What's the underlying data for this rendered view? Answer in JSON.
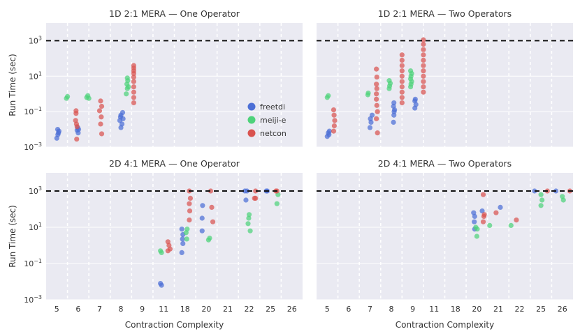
{
  "chart_data": [
    {
      "type": "scatter",
      "title": "1D 2:1 MERA — One Operator",
      "xlabel": "",
      "ylabel": "Run Time (sec)",
      "yscale": "log",
      "ylim_log10": [
        -3,
        4
      ],
      "yticks": [
        {
          "exp": -3,
          "label": "10",
          "sup": "−3"
        },
        {
          "exp": -1,
          "label": "10",
          "sup": "−1"
        },
        {
          "exp": 1,
          "label": "10",
          "sup": "1"
        },
        {
          "exp": 3,
          "label": "10",
          "sup": "3"
        }
      ],
      "xticks": [
        "5",
        "6",
        "7",
        "8",
        "9",
        "11",
        "18",
        "20",
        "21",
        "22",
        "25",
        "26"
      ],
      "timeout_log10": 3,
      "series": [
        {
          "name": "freetdi",
          "points": [
            [
              0.0,
              -2.5
            ],
            [
              0.05,
              -2.3
            ],
            [
              0.08,
              -2.2
            ],
            [
              0.1,
              -2.1
            ],
            [
              0.04,
              -2.0
            ],
            [
              1.0,
              -2.2
            ],
            [
              0.95,
              -2.05
            ],
            [
              1.02,
              -2.0
            ],
            [
              0.98,
              -1.9
            ],
            [
              3.0,
              -1.9
            ],
            [
              3.05,
              -1.7
            ],
            [
              2.95,
              -1.5
            ],
            [
              3.1,
              -1.4
            ],
            [
              3.0,
              -1.2
            ],
            [
              3.08,
              -1.05
            ],
            [
              2.98,
              -1.3
            ]
          ]
        },
        {
          "name": "meiji-e",
          "points": [
            [
              0.45,
              -0.25
            ],
            [
              0.5,
              -0.15
            ],
            [
              1.4,
              -0.2
            ],
            [
              1.45,
              -0.1
            ],
            [
              1.5,
              -0.25
            ],
            [
              3.25,
              0.0
            ],
            [
              3.3,
              0.3
            ],
            [
              3.28,
              0.55
            ],
            [
              3.32,
              0.75
            ],
            [
              3.3,
              0.9
            ],
            [
              3.35,
              0.4
            ]
          ]
        },
        {
          "name": "netcon",
          "points": [
            [
              0.9,
              -0.95
            ],
            [
              0.88,
              -1.5
            ],
            [
              0.92,
              -1.7
            ],
            [
              0.95,
              -1.85
            ],
            [
              0.93,
              -2.55
            ],
            [
              0.9,
              -1.1
            ],
            [
              2.05,
              -0.4
            ],
            [
              2.1,
              -0.7
            ],
            [
              2.0,
              -0.95
            ],
            [
              2.08,
              -1.3
            ],
            [
              2.05,
              -1.7
            ],
            [
              2.1,
              -2.25
            ],
            [
              3.6,
              -0.5
            ],
            [
              3.6,
              -0.2
            ],
            [
              3.6,
              0.1
            ],
            [
              3.6,
              0.4
            ],
            [
              3.6,
              0.7
            ],
            [
              3.6,
              0.95
            ],
            [
              3.6,
              1.15
            ],
            [
              3.6,
              1.3
            ],
            [
              3.6,
              1.45
            ],
            [
              3.6,
              1.6
            ]
          ]
        }
      ]
    },
    {
      "type": "scatter",
      "title": "1D 2:1 MERA — Two Operators",
      "xlabel": "",
      "ylabel": "",
      "yscale": "log",
      "ylim_log10": [
        -3,
        4
      ],
      "xticks": [
        "5",
        "6",
        "7",
        "8",
        "9",
        "11",
        "18",
        "20",
        "21",
        "22",
        "25",
        "26"
      ],
      "timeout_log10": 3,
      "series": [
        {
          "name": "freetdi",
          "points": [
            [
              0.0,
              -2.4
            ],
            [
              0.05,
              -2.2
            ],
            [
              0.1,
              -2.1
            ],
            [
              0.08,
              -2.3
            ],
            [
              2.0,
              -1.9
            ],
            [
              2.05,
              -1.6
            ],
            [
              2.1,
              -1.2
            ],
            [
              2.02,
              -1.4
            ],
            [
              3.1,
              -1.6
            ],
            [
              3.12,
              -1.2
            ],
            [
              3.15,
              -0.9
            ],
            [
              3.1,
              -0.7
            ],
            [
              3.12,
              -0.5
            ],
            [
              3.13,
              -1.0
            ],
            [
              4.1,
              -0.8
            ],
            [
              4.15,
              -0.6
            ],
            [
              4.1,
              -0.4
            ],
            [
              4.12,
              -0.3
            ]
          ]
        },
        {
          "name": "meiji-e",
          "points": [
            [
              0.0,
              -0.2
            ],
            [
              0.05,
              -0.1
            ],
            [
              1.9,
              -0.05
            ],
            [
              1.92,
              0.05
            ],
            [
              2.9,
              0.3
            ],
            [
              2.92,
              0.45
            ],
            [
              2.95,
              0.6
            ],
            [
              2.9,
              0.75
            ],
            [
              3.9,
              0.4
            ],
            [
              3.92,
              0.55
            ],
            [
              3.95,
              0.7
            ],
            [
              3.9,
              0.85
            ],
            [
              3.92,
              1.0
            ],
            [
              3.95,
              1.15
            ],
            [
              3.9,
              1.3
            ]
          ]
        },
        {
          "name": "netcon",
          "points": [
            [
              0.3,
              -0.9
            ],
            [
              0.32,
              -1.2
            ],
            [
              0.35,
              -1.5
            ],
            [
              0.33,
              -1.8
            ],
            [
              0.3,
              -2.1
            ],
            [
              2.3,
              -0.3
            ],
            [
              2.32,
              -0.65
            ],
            [
              2.35,
              -1.0
            ],
            [
              2.3,
              -1.4
            ],
            [
              2.35,
              -2.2
            ],
            [
              2.3,
              0.0
            ],
            [
              2.32,
              0.3
            ],
            [
              2.3,
              0.55
            ],
            [
              2.32,
              0.95
            ],
            [
              2.3,
              1.4
            ],
            [
              3.5,
              -0.5
            ],
            [
              3.5,
              -0.2
            ],
            [
              3.5,
              0.1
            ],
            [
              3.5,
              0.4
            ],
            [
              3.5,
              0.7
            ],
            [
              3.5,
              1.0
            ],
            [
              3.5,
              1.3
            ],
            [
              3.5,
              1.6
            ],
            [
              3.5,
              1.9
            ],
            [
              3.5,
              2.2
            ],
            [
              4.5,
              0.1
            ],
            [
              4.5,
              0.4
            ],
            [
              4.5,
              0.7
            ],
            [
              4.5,
              1.0
            ],
            [
              4.5,
              1.3
            ],
            [
              4.5,
              1.6
            ],
            [
              4.5,
              1.9
            ],
            [
              4.5,
              2.2
            ],
            [
              4.5,
              2.5
            ],
            [
              4.5,
              2.8
            ],
            [
              4.5,
              3.05
            ]
          ]
        }
      ]
    },
    {
      "type": "scatter",
      "title": "2D 4:1 MERA — One Operator",
      "xlabel": "Contraction Complexity",
      "ylabel": "Run Time (sec)",
      "yscale": "log",
      "ylim_log10": [
        -3,
        4
      ],
      "yticks": [
        {
          "exp": -3,
          "label": "10",
          "sup": "−3"
        },
        {
          "exp": -1,
          "label": "10",
          "sup": "−1"
        },
        {
          "exp": 1,
          "label": "10",
          "sup": "1"
        },
        {
          "exp": 3,
          "label": "10",
          "sup": "3"
        }
      ],
      "xticks": [
        "5",
        "6",
        "7",
        "8",
        "9",
        "11",
        "18",
        "20",
        "21",
        "22",
        "25",
        "26"
      ],
      "timeout_log10": 3,
      "series": [
        {
          "name": "freetdi",
          "points": [
            [
              4.85,
              -2.1
            ],
            [
              4.9,
              -2.2
            ],
            [
              5.85,
              0.9
            ],
            [
              5.9,
              0.6
            ],
            [
              5.88,
              0.35
            ],
            [
              5.9,
              0.1
            ],
            [
              5.85,
              -0.4
            ],
            [
              6.8,
              1.5
            ],
            [
              6.82,
              2.2
            ],
            [
              6.8,
              0.8
            ],
            [
              8.8,
              3.0
            ],
            [
              8.85,
              2.5
            ],
            [
              8.9,
              3.0
            ],
            [
              9.8,
              3.0
            ],
            [
              9.85,
              3.0
            ]
          ]
        },
        {
          "name": "meiji-e",
          "points": [
            [
              4.85,
              -0.3
            ],
            [
              4.9,
              -0.4
            ],
            [
              6.05,
              0.7
            ],
            [
              6.1,
              0.9
            ],
            [
              6.08,
              0.35
            ],
            [
              7.1,
              0.3
            ],
            [
              7.15,
              0.4
            ],
            [
              8.95,
              1.2
            ],
            [
              8.98,
              1.5
            ],
            [
              9.0,
              1.7
            ],
            [
              9.05,
              0.8
            ],
            [
              10.3,
              2.3
            ],
            [
              10.35,
              2.8
            ]
          ]
        },
        {
          "name": "netcon",
          "points": [
            [
              5.2,
              0.2
            ],
            [
              5.25,
              0.0
            ],
            [
              5.2,
              -0.3
            ],
            [
              5.3,
              -0.2
            ],
            [
              6.2,
              3.0
            ],
            [
              6.25,
              2.6
            ],
            [
              6.2,
              2.3
            ],
            [
              6.22,
              1.9
            ],
            [
              6.2,
              1.4
            ],
            [
              7.2,
              3.0
            ],
            [
              7.25,
              2.1
            ],
            [
              7.3,
              1.3
            ],
            [
              9.25,
              2.6
            ],
            [
              9.3,
              3.0
            ],
            [
              9.3,
              2.6
            ],
            [
              10.25,
              3.0
            ],
            [
              10.3,
              3.0
            ]
          ]
        }
      ]
    },
    {
      "type": "scatter",
      "title": "2D 4:1 MERA — Two Operators",
      "xlabel": "Contraction Complexity",
      "ylabel": "",
      "yscale": "log",
      "ylim_log10": [
        -3,
        4
      ],
      "xticks": [
        "5",
        "6",
        "7",
        "8",
        "9",
        "11",
        "18",
        "20",
        "21",
        "22",
        "25",
        "26"
      ],
      "timeout_log10": 3,
      "series": [
        {
          "name": "freetdi",
          "points": [
            [
              6.85,
              1.8
            ],
            [
              6.9,
              1.6
            ],
            [
              6.88,
              1.3
            ],
            [
              6.9,
              0.9
            ],
            [
              7.25,
              1.9
            ],
            [
              8.1,
              2.1
            ],
            [
              9.7,
              3.0
            ],
            [
              10.7,
              3.0
            ]
          ]
        },
        {
          "name": "meiji-e",
          "points": [
            [
              6.95,
              1.0
            ],
            [
              7.0,
              0.5
            ],
            [
              7.02,
              0.9
            ],
            [
              7.6,
              1.1
            ],
            [
              8.6,
              1.1
            ],
            [
              10.0,
              2.8
            ],
            [
              10.05,
              2.5
            ],
            [
              10.0,
              2.2
            ],
            [
              11.0,
              2.7
            ],
            [
              11.05,
              2.5
            ]
          ]
        },
        {
          "name": "netcon",
          "points": [
            [
              7.3,
              2.8
            ],
            [
              7.35,
              1.7
            ],
            [
              7.3,
              1.3
            ],
            [
              7.33,
              1.6
            ],
            [
              7.9,
              1.8
            ],
            [
              8.85,
              1.4
            ],
            [
              10.3,
              3.0
            ],
            [
              11.35,
              3.0
            ]
          ]
        }
      ]
    }
  ],
  "legend": [
    {
      "name": "freetdi",
      "color": "#4c6fd6"
    },
    {
      "name": "meiji-e",
      "color": "#4ed27a"
    },
    {
      "name": "netcon",
      "color": "#d9534f"
    }
  ]
}
